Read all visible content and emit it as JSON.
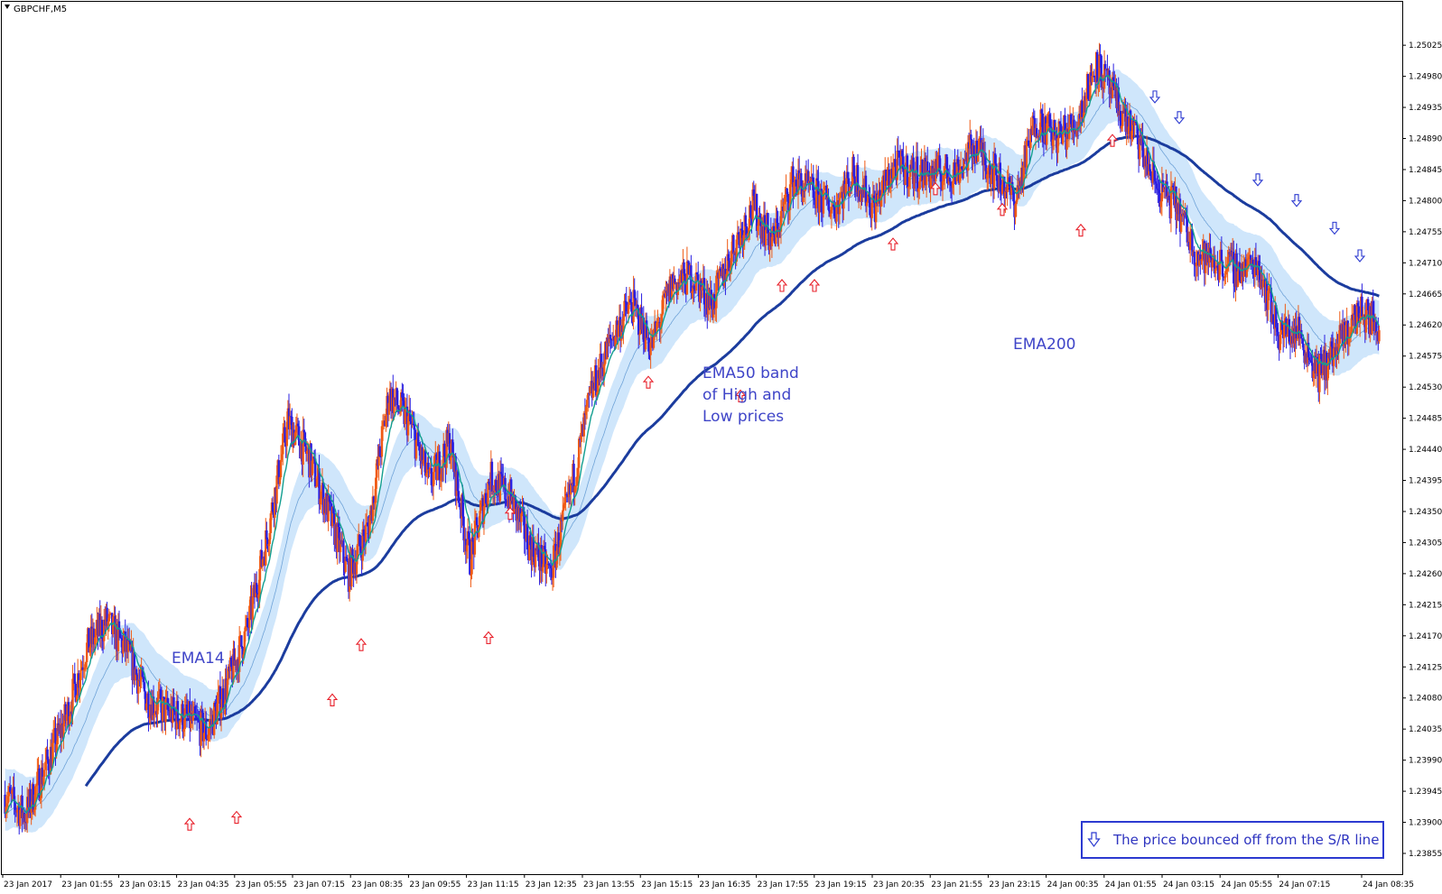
{
  "window": {
    "title": "GBPCHF,M5"
  },
  "colors": {
    "bull": "#f05a14",
    "bear": "#2a1fe0",
    "ema14": "#129e90",
    "ema50_band": "#cfe6fb",
    "ema50_mid": "#6fa3d8",
    "ema200": "#1b3c9e",
    "up_arrow": "#e8202a",
    "down_arrow": "#2c3ad0",
    "legend_border": "#2c3ad0"
  },
  "annotations": {
    "ema14": "EMA14",
    "ema50_line1": "EMA50 band",
    "ema50_line2": "of High and",
    "ema50_line3": "Low prices",
    "ema200": "EMA200"
  },
  "legend": {
    "icon": "down-arrow-icon",
    "text": "The price bounced off from the S/R line"
  },
  "chart_data": {
    "type": "candlestick",
    "symbol": "GBPCHF",
    "timeframe": "M5",
    "ylim": [
      1.23855,
      1.2505
    ],
    "y_ticks": [
      "1.25025",
      "1.24980",
      "1.24935",
      "1.24890",
      "1.24845",
      "1.24800",
      "1.24755",
      "1.24710",
      "1.24665",
      "1.24620",
      "1.24575",
      "1.24530",
      "1.24485",
      "1.24440",
      "1.24395",
      "1.24350",
      "1.24305",
      "1.24260",
      "1.24215",
      "1.24170",
      "1.24125",
      "1.24080",
      "1.24035",
      "1.23990",
      "1.23945",
      "1.23900",
      "1.23855"
    ],
    "x_ticks": [
      "23 Jan 2017",
      "23 Jan 01:55",
      "23 Jan 03:15",
      "23 Jan 04:35",
      "23 Jan 05:55",
      "23 Jan 07:15",
      "23 Jan 08:35",
      "23 Jan 09:55",
      "23 Jan 11:15",
      "23 Jan 12:35",
      "23 Jan 13:55",
      "23 Jan 15:15",
      "23 Jan 16:35",
      "23 Jan 17:55",
      "23 Jan 19:15",
      "23 Jan 20:35",
      "23 Jan 21:55",
      "23 Jan 23:15",
      "24 Jan 00:35",
      "24 Jan 01:55",
      "24 Jan 03:15",
      "24 Jan 05:55",
      "24 Jan 07:15",
      "24 Jan 08:35"
    ],
    "close_path": [
      [
        0,
        1.2394
      ],
      [
        20,
        1.2391
      ],
      [
        40,
        1.2398
      ],
      [
        60,
        1.2405
      ],
      [
        80,
        1.2415
      ],
      [
        100,
        1.2419
      ],
      [
        120,
        1.2415
      ],
      [
        140,
        1.2408
      ],
      [
        160,
        1.2406
      ],
      [
        180,
        1.2405
      ],
      [
        200,
        1.2403
      ],
      [
        220,
        1.241
      ],
      [
        240,
        1.2418
      ],
      [
        260,
        1.2432
      ],
      [
        280,
        1.2448
      ],
      [
        300,
        1.2443
      ],
      [
        320,
        1.2435
      ],
      [
        340,
        1.2426
      ],
      [
        360,
        1.2433
      ],
      [
        380,
        1.2452
      ],
      [
        400,
        1.2448
      ],
      [
        420,
        1.2439
      ],
      [
        440,
        1.2445
      ],
      [
        460,
        1.2428
      ],
      [
        480,
        1.244
      ],
      [
        500,
        1.2437
      ],
      [
        520,
        1.243
      ],
      [
        540,
        1.2426
      ],
      [
        560,
        1.2438
      ],
      [
        580,
        1.2452
      ],
      [
        600,
        1.246
      ],
      [
        620,
        1.2465
      ],
      [
        640,
        1.2459
      ],
      [
        660,
        1.2468
      ],
      [
        680,
        1.2469
      ],
      [
        700,
        1.2465
      ],
      [
        720,
        1.2473
      ],
      [
        740,
        1.2479
      ],
      [
        760,
        1.2474
      ],
      [
        780,
        1.2483
      ],
      [
        800,
        1.2481
      ],
      [
        820,
        1.2479
      ],
      [
        840,
        1.2484
      ],
      [
        860,
        1.2479
      ],
      [
        880,
        1.2485
      ],
      [
        900,
        1.2484
      ],
      [
        920,
        1.2484
      ],
      [
        940,
        1.2484
      ],
      [
        960,
        1.2488
      ],
      [
        980,
        1.2484
      ],
      [
        1000,
        1.248
      ],
      [
        1020,
        1.2492
      ],
      [
        1040,
        1.2489
      ],
      [
        1060,
        1.2491
      ],
      [
        1080,
        1.25
      ],
      [
        1100,
        1.2494
      ],
      [
        1120,
        1.2489
      ],
      [
        1140,
        1.2482
      ],
      [
        1160,
        1.2479
      ],
      [
        1180,
        1.2472
      ],
      [
        1200,
        1.2471
      ],
      [
        1220,
        1.247
      ],
      [
        1240,
        1.2471
      ],
      [
        1260,
        1.2461
      ],
      [
        1280,
        1.2461
      ],
      [
        1300,
        1.2455
      ],
      [
        1320,
        1.2459
      ],
      [
        1340,
        1.2464
      ],
      [
        1360,
        1.2462
      ]
    ],
    "series": [
      {
        "name": "EMA14"
      },
      {
        "name": "EMA50 band of High and Low prices"
      },
      {
        "name": "EMA200"
      }
    ],
    "bounce_up_markers": [
      1.2392,
      1.2393,
      1.241,
      1.2418,
      1.2419,
      1.2437,
      1.2456,
      1.2454,
      1.247,
      1.247,
      1.2476,
      1.2484,
      1.2481,
      1.2478,
      1.2491,
      1.2484
    ],
    "bounce_down_markers": [
      1.2493,
      1.249,
      1.2481,
      1.2478,
      1.2474,
      1.247
    ]
  }
}
